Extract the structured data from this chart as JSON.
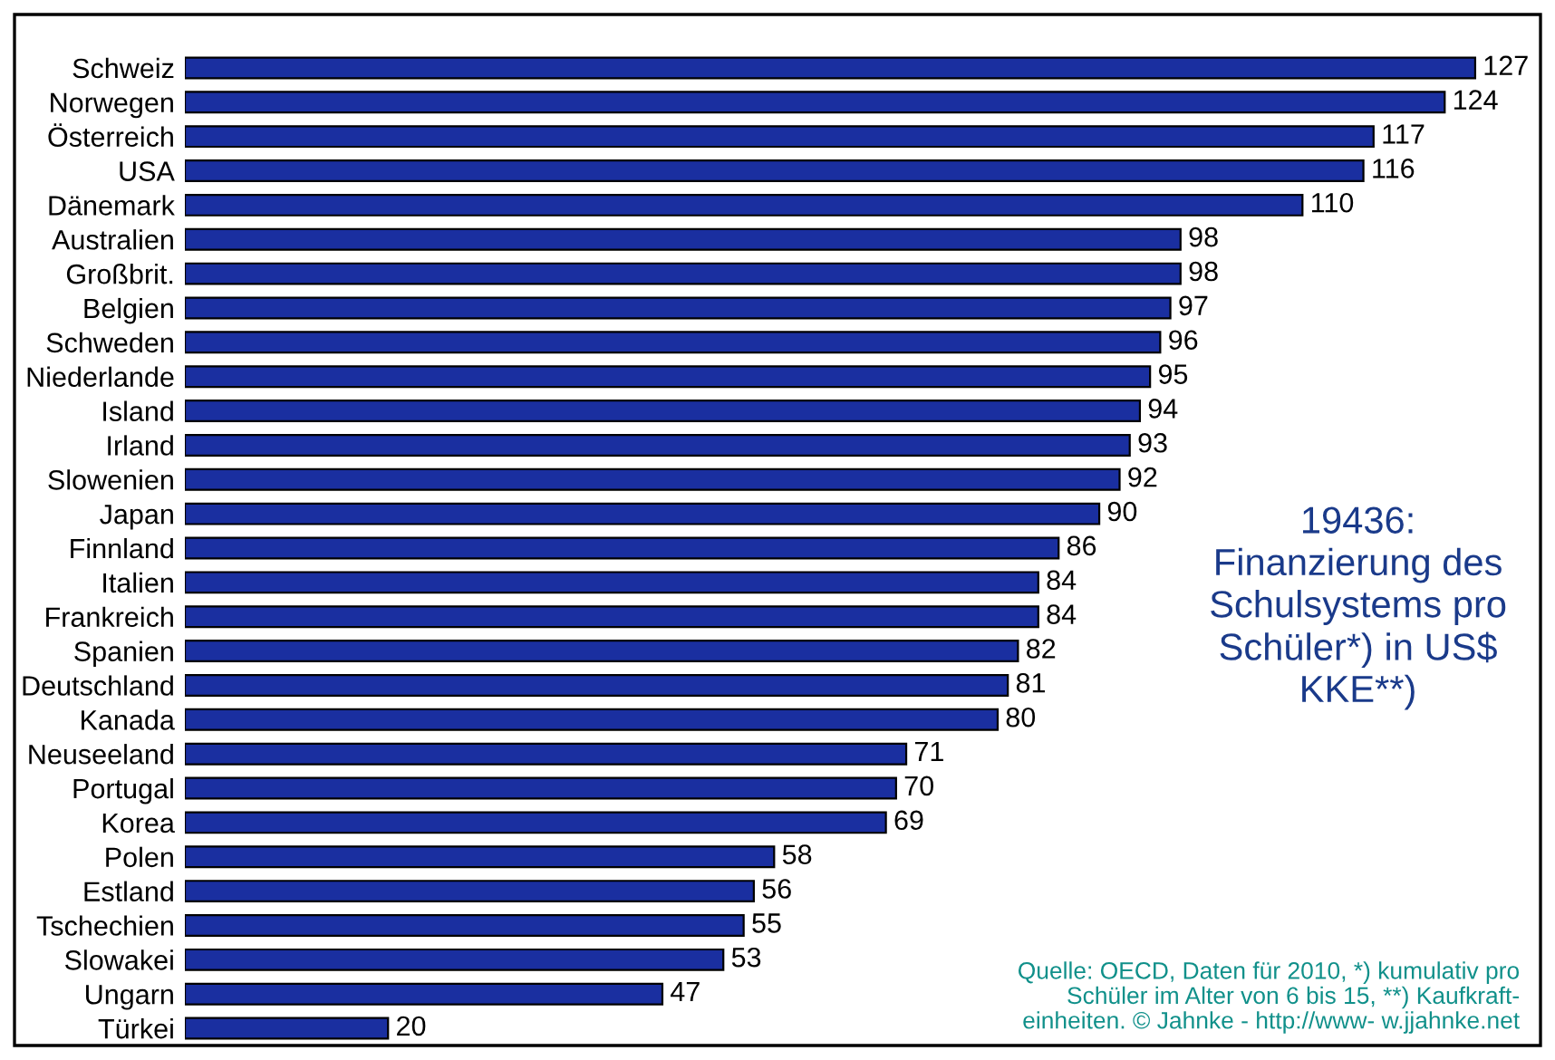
{
  "chart_data": {
    "type": "bar",
    "orientation": "horizontal",
    "title": "19436:\nFinanzierung des\nSchulsystems pro\nSchüler*) in US$\nKKE**)",
    "categories": [
      "Schweiz",
      "Norwegen",
      "Österreich",
      "USA",
      "Dänemark",
      "Australien",
      "Großbrit.",
      "Belgien",
      "Schweden",
      "Niederlande",
      "Island",
      "Irland",
      "Slowenien",
      "Japan",
      "Finnland",
      "Italien",
      "Frankreich",
      "Spanien",
      "Deutschland",
      "Kanada",
      "Neuseeland",
      "Portugal",
      "Korea",
      "Polen",
      "Estland",
      "Tschechien",
      "Slowakei",
      "Ungarn",
      "Türkei"
    ],
    "values": [
      127,
      124,
      117,
      116,
      110,
      98,
      98,
      97,
      96,
      95,
      94,
      93,
      92,
      90,
      86,
      84,
      84,
      82,
      81,
      80,
      71,
      70,
      69,
      58,
      56,
      55,
      53,
      47,
      20
    ],
    "color": "#1a2fa0",
    "data_labels": true,
    "grid": false,
    "legend": false,
    "annotations": [
      "Quelle: OECD, Daten für 2010, *) kumulativ pro\nSchüler im Alter von 6 bis 15, **) Kaufkraft-\neinheiten. © Jahnke - http://www- w.jjahnke.net"
    ]
  }
}
